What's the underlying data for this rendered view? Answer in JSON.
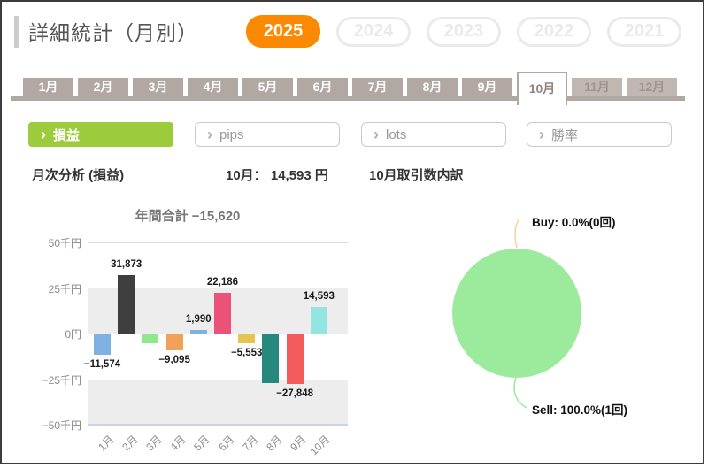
{
  "page_title": "詳細統計（月別）",
  "header": {
    "years": [
      {
        "label": "2025",
        "active": true
      },
      {
        "label": "2024",
        "active": false
      },
      {
        "label": "2023",
        "active": false
      },
      {
        "label": "2022",
        "active": false
      },
      {
        "label": "2021",
        "active": false
      }
    ]
  },
  "month_tabs": [
    {
      "label": "1月",
      "state": "normal"
    },
    {
      "label": "2月",
      "state": "normal"
    },
    {
      "label": "3月",
      "state": "normal"
    },
    {
      "label": "4月",
      "state": "normal"
    },
    {
      "label": "5月",
      "state": "normal"
    },
    {
      "label": "6月",
      "state": "normal"
    },
    {
      "label": "7月",
      "state": "normal"
    },
    {
      "label": "8月",
      "state": "normal"
    },
    {
      "label": "9月",
      "state": "normal"
    },
    {
      "label": "10月",
      "state": "active"
    },
    {
      "label": "11月",
      "state": "disabled"
    },
    {
      "label": "12月",
      "state": "disabled"
    }
  ],
  "filters": [
    {
      "label": "損益",
      "active": true
    },
    {
      "label": "pips",
      "active": false
    },
    {
      "label": "lots",
      "active": false
    },
    {
      "label": "勝率",
      "active": false
    }
  ],
  "filter_chevron_icon": "›",
  "section_headings": {
    "monthly_analysis": "月次分析 (損益)",
    "month_total": "10月： 14,593 円",
    "trade_breakdown": "10月取引数内訳"
  },
  "chart_data": [
    {
      "type": "bar",
      "title": "年間合計 −15,620",
      "annual_total": -15620,
      "categories": [
        "1月",
        "2月",
        "3月",
        "4月",
        "5月",
        "6月",
        "7月",
        "8月",
        "9月",
        "10月"
      ],
      "values": [
        -11574,
        31873,
        -5100,
        -9095,
        1990,
        22186,
        -5553,
        -27092,
        -27848,
        14593
      ],
      "labels": [
        "−11,574",
        "31,873",
        "",
        "−9,095",
        "1,990",
        "22,186",
        "−5,553",
        "",
        "−27,848",
        "14,593"
      ],
      "colors": [
        "#7FB2E3",
        "#3F3F3F",
        "#90E88C",
        "#F2A159",
        "#7FB2E3",
        "#EA5277",
        "#E5C44F",
        "#27887E",
        "#F25C5C",
        "#93E6E0"
      ],
      "y_ticks": [
        "50千円",
        "25千円",
        "0円",
        "−25千円",
        "−50千円"
      ],
      "ylim": [
        -50000,
        50000
      ],
      "grid": "alternating-bands"
    },
    {
      "type": "pie",
      "title": "10月取引数内訳",
      "slices": [
        {
          "label": "Buy: 0.0%(0回)",
          "value": 0.0,
          "count": 0,
          "color": "#FFCF9E"
        },
        {
          "label": "Sell: 100.0%(1回)",
          "value": 100.0,
          "count": 1,
          "color": "#9CEB9C"
        }
      ],
      "legend_position": "callout-labels"
    }
  ],
  "colors": {
    "active_year_bg": "#FB8A00",
    "inactive_year": "#EAEAEA",
    "tab_bg": "#B2A8A3",
    "tab_disabled_bg": "#C0B7B2",
    "active_filter_bg": "#9CCB3B",
    "band_gray": "#EDEDED",
    "baseline_blue": "#C9D3EA"
  }
}
